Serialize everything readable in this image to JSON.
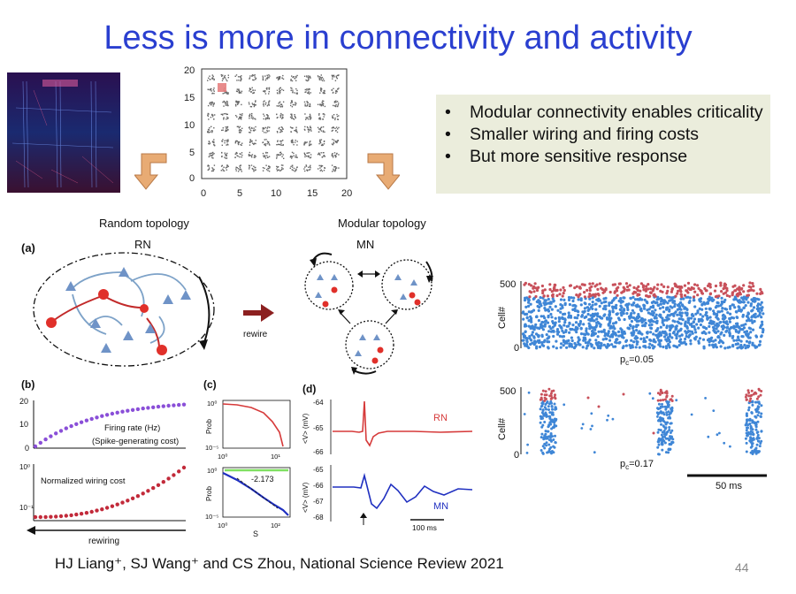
{
  "slide": {
    "title": "Less is more in connectivity and activity",
    "bullets": [
      "Modular connectivity enables criticality",
      "Smaller wiring and firing costs",
      "But more sensitive response"
    ],
    "citation": "HJ Liang⁺, SJ Wang⁺ and  CS Zhou, National Science Review 2021",
    "page_number": "44"
  },
  "grid_plot": {
    "x_ticks": [
      "0",
      "5",
      "10",
      "15",
      "20"
    ],
    "y_ticks": [
      "20",
      "15",
      "10",
      "5",
      "0"
    ]
  },
  "panel_a": {
    "label": "(a)",
    "random_title": "Random topology",
    "random_abbrev": "RN",
    "modular_title": "Modular topology",
    "modular_abbrev": "MN",
    "arrow_label": "rewire"
  },
  "panel_b": {
    "label": "(b)",
    "firing_label": "Firing rate (Hz)",
    "firing_sub": "(Spike-generating cost)",
    "wiring_label": "Normalized wiring cost",
    "x_label": "rewiring",
    "top_ticks": [
      "20",
      "10",
      "0"
    ],
    "bottom_ticks": [
      "10⁰",
      "10⁻¹"
    ]
  },
  "panel_c": {
    "label": "(c)",
    "ylabel": "Prob",
    "xlabel": "S",
    "slope": "-2.173",
    "top_yticks": [
      "10⁰",
      "10⁻⁵"
    ],
    "top_xticks": [
      "10⁰",
      "10¹"
    ],
    "bottom_yticks": [
      "10⁰",
      "10⁻⁵"
    ],
    "bottom_xticks": [
      "10⁰",
      "10²"
    ]
  },
  "panel_d": {
    "label": "(d)",
    "ylabel": "<V> (mV)",
    "rn": "RN",
    "mn": "MN",
    "top_ticks": [
      "-64",
      "-65",
      "-66"
    ],
    "bottom_ticks": [
      "-65",
      "-66",
      "-67",
      "-68"
    ],
    "scalebar": "100 ms"
  },
  "raster": {
    "ylabel": "Cell#",
    "ytick_top": "500",
    "ytick_bottom": "0",
    "pc1": "p",
    "pc1_sub": "c",
    "pc1_val": "=0.05",
    "pc2": "p",
    "pc2_sub": "c",
    "pc2_val": "=0.17",
    "scalebar": "50 ms"
  },
  "colors": {
    "title": "#2a3fd0",
    "red": "#d63a3a",
    "blue": "#3f86d6",
    "purple": "#8a4fd8",
    "dark_red": "#c22a3a",
    "orange_arrow": "#e6a66a"
  }
}
